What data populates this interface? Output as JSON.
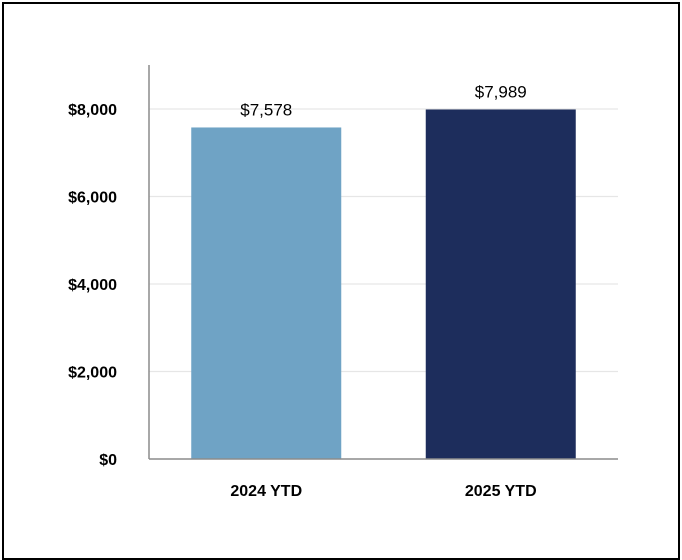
{
  "chart_data": {
    "type": "bar",
    "categories": [
      "2024 YTD",
      "2025 YTD"
    ],
    "values": [
      7578,
      7989
    ],
    "data_labels": [
      "$7,578",
      "$7,989"
    ],
    "colors": [
      "#6fa3c5",
      "#1d2d5c"
    ],
    "title": "",
    "xlabel": "",
    "ylabel": "",
    "ylim": [
      0,
      8000
    ],
    "y_ticks": [
      {
        "value": 0,
        "label": "$0"
      },
      {
        "value": 2000,
        "label": "$2,000"
      },
      {
        "value": 4000,
        "label": "$4,000"
      },
      {
        "value": 6000,
        "label": "$6,000"
      },
      {
        "value": 8000,
        "label": "$8,000"
      }
    ],
    "grid": true,
    "legend": "none"
  }
}
